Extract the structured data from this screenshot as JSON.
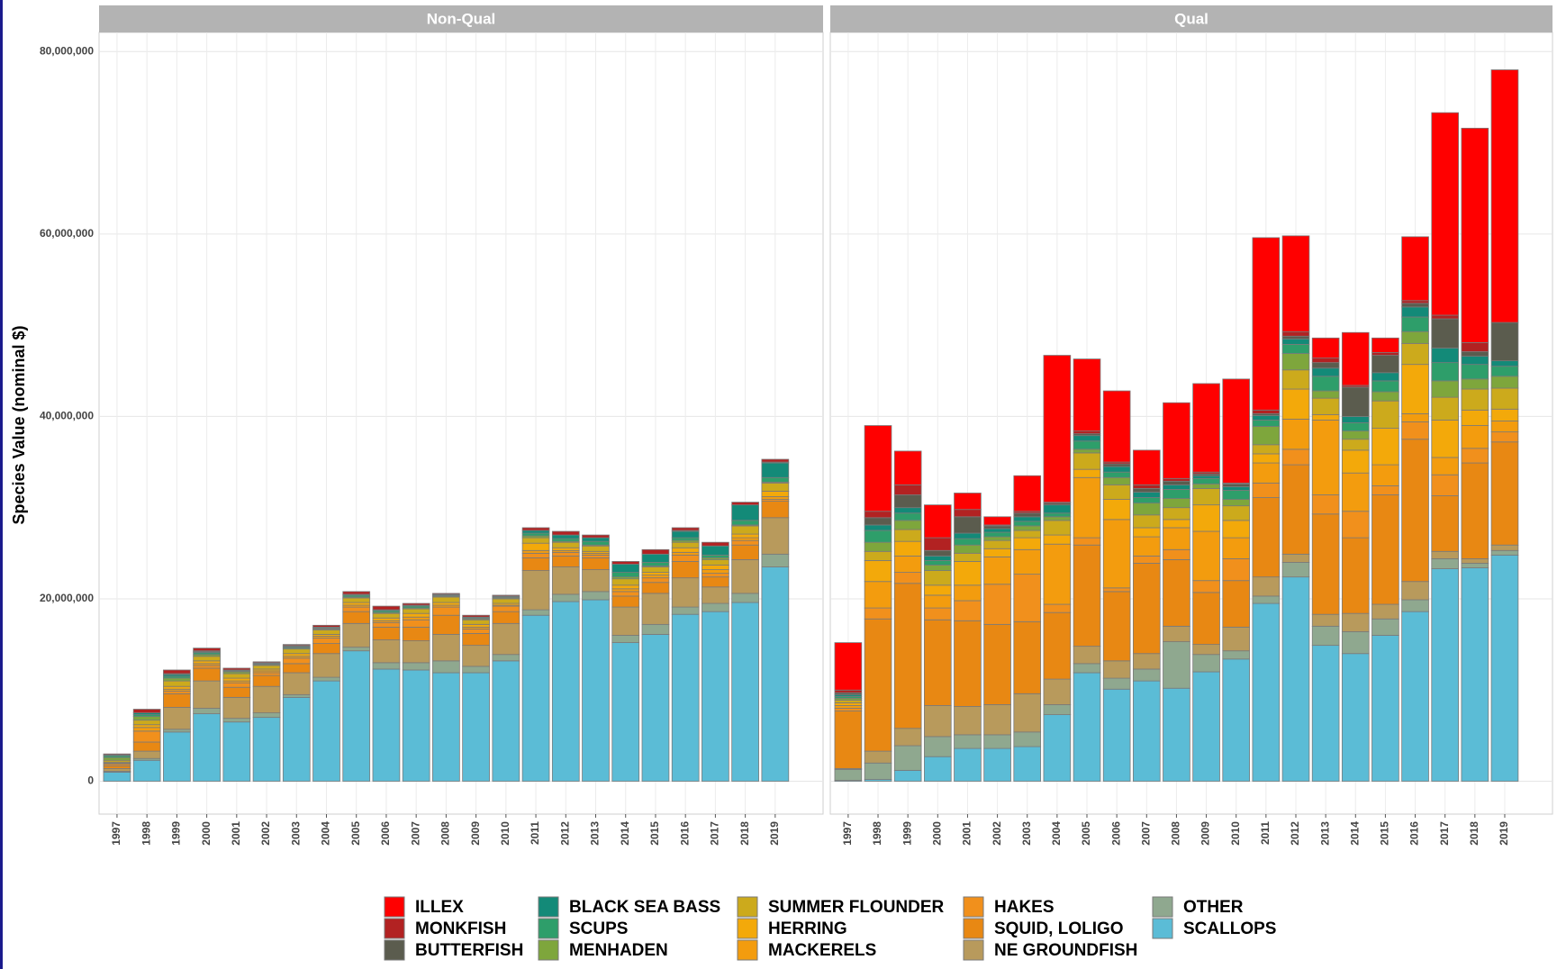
{
  "chart_data": {
    "type": "bar",
    "stacked": true,
    "ylabel": "Species Value (nominal $)",
    "facets": [
      "Non-Qual",
      "Qual"
    ],
    "categories": [
      "1997",
      "1998",
      "1999",
      "2000",
      "2001",
      "2002",
      "2003",
      "2004",
      "2005",
      "2006",
      "2007",
      "2008",
      "2009",
      "2010",
      "2011",
      "2012",
      "2013",
      "2014",
      "2015",
      "2016",
      "2017",
      "2018",
      "2019"
    ],
    "ylim": [
      -3600000.0,
      82100000.0
    ],
    "yticks": [
      0,
      {
        "value": 20000000,
        "label": "20,000,000"
      },
      {
        "value": 40000000,
        "label": "40,000,000"
      },
      {
        "value": 60000000,
        "label": "60,000,000"
      },
      {
        "value": 80000000,
        "label": "80,000,000"
      }
    ],
    "grid": true,
    "legend": "bottom",
    "series": [
      {
        "name": "ILLEX",
        "color": "#ff0000",
        "values": [
          [
            0,
            0,
            0,
            0,
            0,
            0,
            0,
            0,
            0,
            0,
            0,
            0,
            0,
            0,
            0,
            0,
            0,
            0,
            0,
            0,
            0,
            0,
            0
          ],
          [
            5200000.0,
            9400000.0,
            3700000.0,
            3600000.0,
            1800000.0,
            900000.0,
            3900000.0,
            16100000.0,
            7900000.0,
            7800000.0,
            3800000.0,
            8300000.0,
            9700000.0,
            11400000.0,
            18900000.0,
            10500000.0,
            2200000.0,
            5800000.0,
            1600000.0,
            7000000.0,
            22200000.0,
            23500000.0,
            27700000.0
          ]
        ]
      },
      {
        "name": "MONKFISH",
        "color": "#b22222",
        "values": [
          [
            100000.0,
            400000.0,
            400000.0,
            300000.0,
            200000.0,
            100000.0,
            100000.0,
            200000.0,
            300000.0,
            400000.0,
            200000.0,
            100000.0,
            200000.0,
            100000.0,
            300000.0,
            400000.0,
            300000.0,
            300000.0,
            500000.0,
            300000.0,
            400000.0,
            300000.0,
            300000.0
          ],
          [
            300000.0,
            700000.0,
            1100000.0,
            1400000.0,
            800000.0,
            100000.0,
            200000.0,
            100000.0,
            300000.0,
            200000.0,
            400000.0,
            300000.0,
            200000.0,
            100000.0,
            400000.0,
            500000.0,
            500000.0,
            200000.0,
            300000.0,
            300000.0,
            400000.0,
            1000000.0,
            0
          ]
        ]
      },
      {
        "name": "BUTTERFISH",
        "color": "#5b5c4e",
        "values": [
          [
            0,
            0,
            100000.0,
            100000.0,
            0,
            0,
            100000.0,
            0,
            0,
            0,
            0,
            0,
            0,
            0,
            0,
            0,
            0,
            0,
            0,
            100000.0,
            0,
            0,
            100000.0
          ],
          [
            200000.0,
            800000.0,
            1400000.0,
            600000.0,
            1800000.0,
            300000.0,
            400000.0,
            200000.0,
            200000.0,
            300000.0,
            400000.0,
            400000.0,
            200000.0,
            300000.0,
            200000.0,
            300000.0,
            600000.0,
            3200000.0,
            1900000.0,
            400000.0,
            3200000.0,
            500000.0,
            4200000.0
          ]
        ]
      },
      {
        "name": "BLACK SEA BASS",
        "color": "#138a78",
        "values": [
          [
            100000.0,
            200000.0,
            200000.0,
            100000.0,
            100000.0,
            100000.0,
            100000.0,
            100000.0,
            100000.0,
            100000.0,
            100000.0,
            100000.0,
            100000.0,
            100000.0,
            300000.0,
            400000.0,
            400000.0,
            900000.0,
            900000.0,
            700000.0,
            1000000.0,
            1700000.0,
            1600000.0
          ],
          [
            200000.0,
            600000.0,
            600000.0,
            500000.0,
            600000.0,
            400000.0,
            500000.0,
            900000.0,
            600000.0,
            600000.0,
            600000.0,
            500000.0,
            300000.0,
            400000.0,
            500000.0,
            600000.0,
            900000.0,
            700000.0,
            900000.0,
            1100000.0,
            1600000.0,
            900000.0,
            600000.0
          ]
        ]
      },
      {
        "name": "SCUPS",
        "color": "#2e9e6a",
        "values": [
          [
            200000.0,
            200000.0,
            200000.0,
            200000.0,
            100000.0,
            100000.0,
            100000.0,
            100000.0,
            200000.0,
            200000.0,
            200000.0,
            100000.0,
            100000.0,
            100000.0,
            300000.0,
            300000.0,
            400000.0,
            500000.0,
            400000.0,
            300000.0,
            300000.0,
            500000.0,
            500000.0
          ],
          [
            200000.0,
            1300000.0,
            800000.0,
            500000.0,
            700000.0,
            500000.0,
            500000.0,
            400000.0,
            900000.0,
            600000.0,
            600000.0,
            1000000.0,
            600000.0,
            1000000.0,
            700000.0,
            1000000.0,
            1600000.0,
            900000.0,
            1200000.0,
            1600000.0,
            2000000.0,
            1600000.0,
            1100000.0
          ]
        ]
      },
      {
        "name": "MENHADEN",
        "color": "#7ea63c",
        "values": [
          [
            300000.0,
            400000.0,
            300000.0,
            200000.0,
            200000.0,
            100000.0,
            100000.0,
            100000.0,
            100000.0,
            100000.0,
            100000.0,
            100000.0,
            100000.0,
            100000.0,
            200000.0,
            100000.0,
            100000.0,
            200000.0,
            100000.0,
            200000.0,
            200000.0,
            100000.0,
            100000.0
          ],
          [
            200000.0,
            1000000.0,
            1000000.0,
            600000.0,
            900000.0,
            400000.0,
            500000.0,
            400000.0,
            400000.0,
            800000.0,
            1300000.0,
            1000000.0,
            500000.0,
            700000.0,
            2000000.0,
            1800000.0,
            800000.0,
            900000.0,
            1000000.0,
            1300000.0,
            1800000.0,
            1100000.0,
            1300000.0
          ]
        ]
      },
      {
        "name": "SUMMER FLOUNDER",
        "color": "#ccaa1c",
        "values": [
          [
            200000.0,
            500000.0,
            600000.0,
            500000.0,
            500000.0,
            400000.0,
            500000.0,
            500000.0,
            500000.0,
            500000.0,
            500000.0,
            600000.0,
            500000.0,
            500000.0,
            600000.0,
            600000.0,
            600000.0,
            700000.0,
            600000.0,
            600000.0,
            600000.0,
            900000.0,
            900000.0
          ],
          [
            300000.0,
            1000000.0,
            1300000.0,
            1600000.0,
            900000.0,
            900000.0,
            800000.0,
            1600000.0,
            1800000.0,
            1600000.0,
            1400000.0,
            1300000.0,
            1800000.0,
            1600000.0,
            1000000.0,
            2100000.0,
            1800000.0,
            1200000.0,
            3000000.0,
            2300000.0,
            2500000.0,
            2300000.0,
            2300000.0
          ]
        ]
      },
      {
        "name": "HERRING",
        "color": "#f3a90a",
        "values": [
          [
            100000.0,
            300000.0,
            300000.0,
            300000.0,
            300000.0,
            200000.0,
            300000.0,
            200000.0,
            300000.0,
            300000.0,
            400000.0,
            300000.0,
            300000.0,
            200000.0,
            800000.0,
            300000.0,
            200000.0,
            400000.0,
            300000.0,
            500000.0,
            500000.0,
            400000.0,
            600000.0
          ],
          [
            300000.0,
            2300000.0,
            1600000.0,
            1100000.0,
            2600000.0,
            900000.0,
            1300000.0,
            1000000.0,
            900000.0,
            2200000.0,
            1000000.0,
            900000.0,
            2900000.0,
            1900000.0,
            1000000.0,
            3300000.0,
            600000.0,
            2500000.0,
            4000000.0,
            5400000.0,
            4100000.0,
            1700000.0,
            1300000.0
          ]
        ]
      },
      {
        "name": "MACKERELS",
        "color": "#f39c0e",
        "values": [
          [
            100000.0,
            400000.0,
            200000.0,
            200000.0,
            200000.0,
            200000.0,
            200000.0,
            200000.0,
            200000.0,
            200000.0,
            300000.0,
            200000.0,
            200000.0,
            100000.0,
            300000.0,
            200000.0,
            200000.0,
            300000.0,
            300000.0,
            300000.0,
            400000.0,
            300000.0,
            300000.0
          ],
          [
            300000.0,
            2900000.0,
            1800000.0,
            1400000.0,
            1700000.0,
            3000000.0,
            2700000.0,
            6600000.0,
            6600000.0,
            7500000.0,
            2100000.0,
            2400000.0,
            5400000.0,
            2300000.0,
            2200000.0,
            3300000.0,
            8200000.0,
            4200000.0,
            2300000.0,
            900000.0,
            1900000.0,
            2500000.0,
            1200000.0
          ]
        ]
      },
      {
        "name": "HAKES",
        "color": "#f1901c",
        "values": [
          [
            200000.0,
            1200000.0,
            300000.0,
            300000.0,
            500000.0,
            300000.0,
            600000.0,
            600000.0,
            500000.0,
            500000.0,
            800000.0,
            900000.0,
            500000.0,
            600000.0,
            500000.0,
            400000.0,
            300000.0,
            500000.0,
            500000.0,
            700000.0,
            400000.0,
            500000.0,
            200000.0
          ],
          [
            300000.0,
            1200000.0,
            1200000.0,
            1300000.0,
            2200000.0,
            4400000.0,
            5200000.0,
            900000.0,
            800000.0,
            400000.0,
            800000.0,
            1100000.0,
            1300000.0,
            2400000.0,
            1600000.0,
            1700000.0,
            2100000.0,
            2900000.0,
            1000000.0,
            1900000.0,
            2300000.0,
            1600000.0,
            1100000.0
          ]
        ]
      },
      {
        "name": "SQUID, LOLIGO",
        "color": "#e88813",
        "values": [
          [
            300000.0,
            1000000.0,
            1500000.0,
            1400000.0,
            1100000.0,
            1200000.0,
            1000000.0,
            1100000.0,
            1300000.0,
            1400000.0,
            1500000.0,
            2100000.0,
            1300000.0,
            1300000.0,
            1400000.0,
            1200000.0,
            1300000.0,
            1200000.0,
            1200000.0,
            1800000.0,
            1100000.0,
            1600000.0,
            1800000.0
          ],
          [
            6300000.0,
            14500000.0,
            15900000.0,
            9400000.0,
            9400000.0,
            8800000.0,
            7900000.0,
            7300000.0,
            11100000.0,
            7600000.0,
            9900000.0,
            7300000.0,
            5700000.0,
            5100000.0,
            8700000.0,
            9800000.0,
            11000000.0,
            8300000.0,
            12000000.0,
            15600000.0,
            6100000.0,
            10500000.0,
            11300000.0
          ]
        ]
      },
      {
        "name": "NE GROUNDFISH",
        "color": "#b89a5c",
        "values": [
          [
            300000.0,
            800000.0,
            2400000.0,
            3000000.0,
            2300000.0,
            2900000.0,
            2400000.0,
            2600000.0,
            2600000.0,
            2500000.0,
            2400000.0,
            2900000.0,
            2300000.0,
            3400000.0,
            4300000.0,
            3000000.0,
            2400000.0,
            3100000.0,
            3400000.0,
            3200000.0,
            1800000.0,
            3700000.0,
            4000000.0
          ],
          [
            100000.0,
            1300000.0,
            1900000.0,
            3400000.0,
            3100000.0,
            3300000.0,
            4200000.0,
            2800000.0,
            1900000.0,
            1900000.0,
            1700000.0,
            1700000.0,
            1100000.0,
            2600000.0,
            2100000.0,
            900000.0,
            1300000.0,
            2000000.0,
            1600000.0,
            2000000.0,
            800000.0,
            500000.0,
            600000.0
          ]
        ]
      },
      {
        "name": "OTHER",
        "color": "#8fa88f",
        "values": [
          [
            100000.0,
            200000.0,
            300000.0,
            600000.0,
            400000.0,
            500000.0,
            300000.0,
            400000.0,
            400000.0,
            700000.0,
            800000.0,
            1300000.0,
            700000.0,
            700000.0,
            600000.0,
            800000.0,
            900000.0,
            800000.0,
            1100000.0,
            800000.0,
            900000.0,
            1000000.0,
            1400000.0
          ],
          [
            1200000.0,
            1800000.0,
            2700000.0,
            2200000.0,
            1500000.0,
            1500000.0,
            1600000.0,
            1100000.0,
            1000000.0,
            1200000.0,
            1300000.0,
            5100000.0,
            1900000.0,
            900000.0,
            800000.0,
            1600000.0,
            2100000.0,
            2400000.0,
            1800000.0,
            1300000.0,
            1100000.0,
            500000.0,
            500000.0
          ]
        ]
      },
      {
        "name": "SCALLOPS",
        "color": "#5bbcd6",
        "values": [
          [
            1000000.0,
            2300000.0,
            5400000.0,
            7400000.0,
            6500000.0,
            7000000.0,
            9200000.0,
            11000000.0,
            14300000.0,
            12300000.0,
            12200000.0,
            11900000.0,
            11900000.0,
            13200000.0,
            18200000.0,
            19700000.0,
            19900000.0,
            15200000.0,
            16100000.0,
            18300000.0,
            18600000.0,
            19600000.0,
            23500000.0
          ],
          [
            100000.0,
            200000.0,
            1200000.0,
            2700000.0,
            3600000.0,
            3600000.0,
            3800000.0,
            7300000.0,
            11900000.0,
            10100000.0,
            11000000.0,
            10200000.0,
            12000000.0,
            13400000.0,
            19500000.0,
            22400000.0,
            14900000.0,
            14000000.0,
            16000000.0,
            18600000.0,
            23300000.0,
            23400000.0,
            24800000.0
          ]
        ]
      }
    ]
  }
}
